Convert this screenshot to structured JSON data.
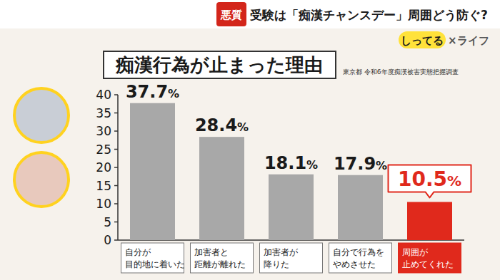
{
  "header": {
    "tag": "悪質",
    "headline": "受験は「痴漢チャンスデー」周囲どう防ぐ?",
    "logo": "しってる",
    "logo_suffix": "×ライフ"
  },
  "chart_data": {
    "type": "bar",
    "title": "痴漢行為が止まった理由",
    "source": "東京都 令和6年度痴漢被害実態把握調査",
    "categories": [
      "自分が\n目的地に着いた",
      "加害者と\n距離が離れた",
      "加害者が\n降りた",
      "自分で行為を\nやめさせた",
      "周囲が\n止めてくれた"
    ],
    "values": [
      37.7,
      28.4,
      18.1,
      17.9,
      10.5
    ],
    "value_labels": [
      "37.7%",
      "28.4%",
      "18.1%",
      "17.9%",
      "10.5%"
    ],
    "colors": [
      "#a8a8a8",
      "#a8a8a8",
      "#a8a8a8",
      "#a8a8a8",
      "#e0291c"
    ],
    "ylim": [
      0,
      40
    ],
    "yticks": [
      0,
      5,
      10,
      15,
      20,
      25,
      30,
      35,
      40
    ],
    "grid": false,
    "data_labels": true
  }
}
